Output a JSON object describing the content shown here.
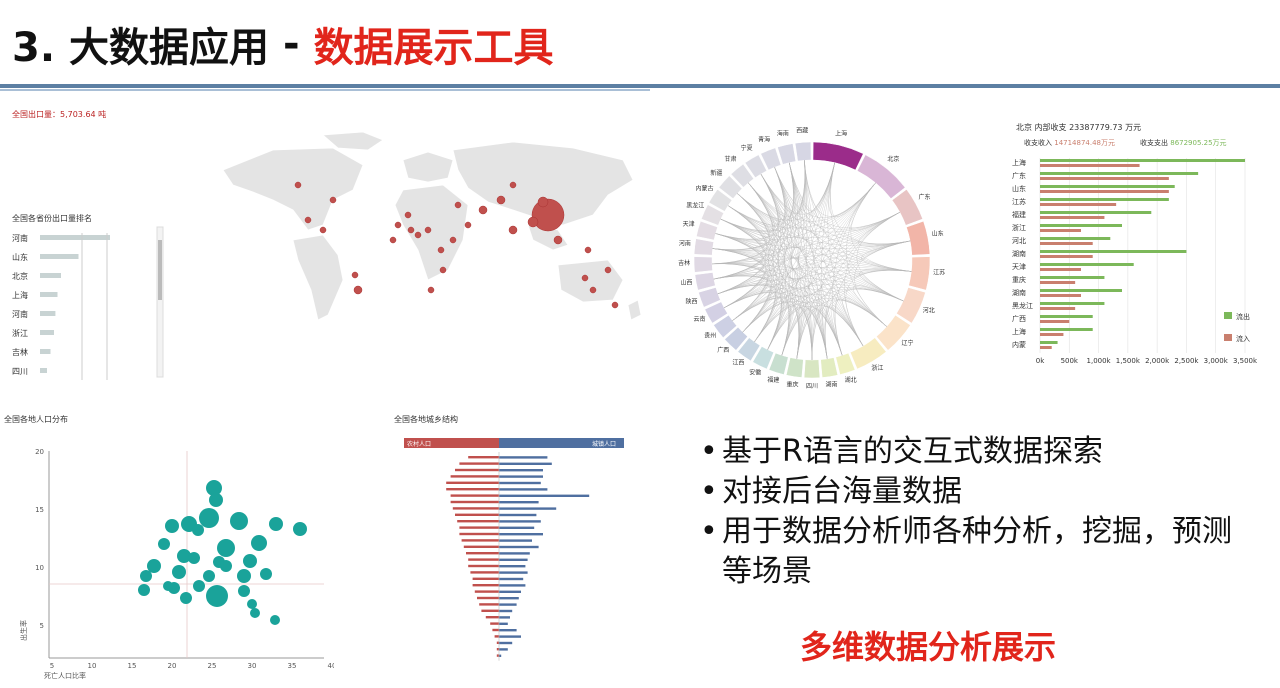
{
  "title": {
    "prefix": "3. 大数据应用",
    "separator": "-",
    "accent": "数据展示工具"
  },
  "map_panel": {
    "header": "全国出口量：5,703.64 吨",
    "list_title": "全国各省份出口量排名",
    "provinces": [
      "河南",
      "山东",
      "北京",
      "上海",
      "河南",
      "浙江",
      "吉林",
      "四川"
    ],
    "bar_values": [
      1.0,
      0.55,
      0.3,
      0.25,
      0.22,
      0.2,
      0.15,
      0.1
    ]
  },
  "chord_panel": {
    "labels": [
      "上海",
      "北京",
      "广东",
      "山东",
      "江苏",
      "河北",
      "辽宁",
      "浙江",
      "湖北",
      "湖南",
      "四川",
      "重庆",
      "福建",
      "安徽",
      "江西",
      "广西",
      "贵州",
      "云南",
      "陕西",
      "山西",
      "吉林",
      "河南",
      "天津",
      "黑龙江",
      "内蒙古",
      "新疆",
      "甘肃",
      "宁夏",
      "青海",
      "海南",
      "西藏"
    ]
  },
  "bar_panel": {
    "header": "北京 内部收支 23387779.73 万元",
    "sub_in": "收支收入",
    "sub_in_value": "14714874.48万元",
    "sub_out": "收支支出",
    "sub_out_value": "8672905.25万元",
    "categories": [
      "上海",
      "广东",
      "山东",
      "江苏",
      "福建",
      "浙江",
      "河北",
      "湖南",
      "天津",
      "重庆",
      "湖南",
      "黑龙江",
      "广西",
      "上海",
      "内蒙"
    ],
    "x_ticks": [
      "0k",
      "500k",
      "1,000k",
      "1,500k",
      "2,000k",
      "2,500k",
      "3,000k",
      "3,500k"
    ],
    "legend_out": "流出",
    "legend_in": "流入",
    "out_values": [
      3500,
      2700,
      2300,
      2200,
      1900,
      1400,
      1200,
      2500,
      1600,
      1100,
      1400,
      1100,
      900,
      900,
      300
    ],
    "in_values": [
      1700,
      2200,
      2200,
      1300,
      1100,
      700,
      900,
      900,
      700,
      600,
      700,
      600,
      500,
      400,
      200
    ],
    "colors": {
      "out": "#7cb85a",
      "in": "#c97f6e"
    }
  },
  "bubble_panel": {
    "title": "全国各地人口分布",
    "ylabel": "出生率",
    "xlabel": "死亡人口比率",
    "x_ticks": [
      "5",
      "10",
      "15",
      "20",
      "25",
      "30",
      "35",
      "40"
    ],
    "y_ticks": [
      "5",
      "10",
      "15",
      "20"
    ]
  },
  "pyramid_panel": {
    "title": "全国各地城乡结构",
    "left_label": "农村人口",
    "right_label": "城镇人口",
    "left_values": [
      14,
      18,
      20,
      22,
      24,
      24,
      22,
      22,
      21,
      20,
      19,
      18,
      18,
      17,
      16,
      15,
      14,
      14,
      13,
      12,
      12,
      11,
      10,
      9,
      8,
      6,
      4,
      3,
      2,
      1,
      1,
      1
    ],
    "right_values": [
      22,
      24,
      20,
      20,
      19,
      22,
      41,
      18,
      26,
      17,
      19,
      16,
      20,
      15,
      18,
      14,
      13,
      12,
      13,
      11,
      12,
      10,
      9,
      8,
      6,
      5,
      4,
      8,
      10,
      6,
      4,
      1
    ]
  },
  "bullets": [
    "基于R语言的交互式数据探索",
    "对接后台海量数据",
    "用于数据分析师各种分析，挖掘，预测等场景"
  ],
  "highlight": "多维数据分析展示"
}
